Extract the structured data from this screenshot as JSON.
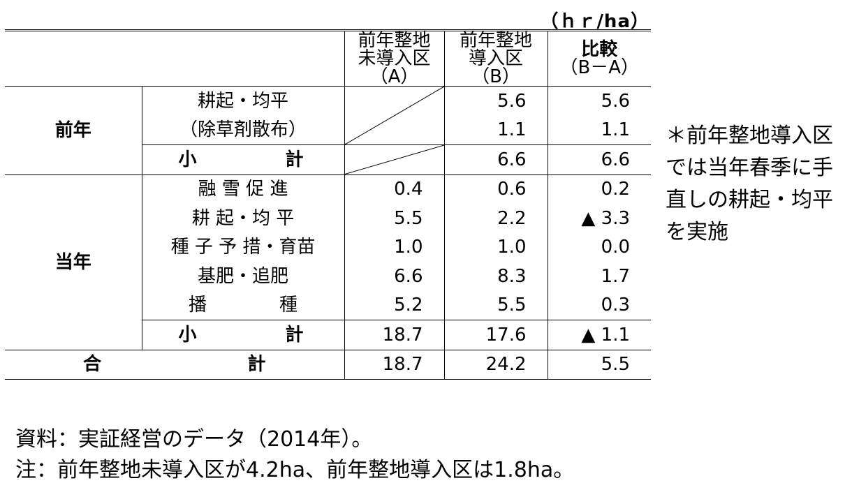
{
  "unit": "（ｈｒ/ha）",
  "header": {
    "col_a": [
      "前年整地",
      "未導入区",
      "（A）"
    ],
    "col_b": [
      "前年整地",
      "導入区",
      "（B）"
    ],
    "col_c": [
      "比較",
      "（B－A）"
    ]
  },
  "groups": {
    "prev": "前年",
    "curr": "当年"
  },
  "rows": {
    "prev_item1_line1": "耕起・均平",
    "prev_item1_line2": "（除草剤散布）",
    "prev_item1_b1": "5.6",
    "prev_item1_c1": "5.6",
    "prev_item1_b2": "1.1",
    "prev_item1_c2": "1.1",
    "prev_sub_l": "小",
    "prev_sub_r": "計",
    "prev_sub_b": "6.6",
    "prev_sub_c": "6.6",
    "curr": [
      {
        "item": "融 雪 促 進",
        "a": "0.4",
        "b": "0.6",
        "c": "0.2"
      },
      {
        "item": "耕 起・均 平",
        "a": "5.5",
        "b": "2.2",
        "c": "▲ 3.3"
      },
      {
        "item": "種 子 予 措・育苗",
        "a": "1.0",
        "b": "1.0",
        "c": "0.0"
      },
      {
        "item": "基肥・追肥",
        "a": "6.6",
        "b": "8.3",
        "c": "1.7"
      },
      {
        "item": "播　　　　種",
        "a": "5.2",
        "b": "5.5",
        "c": "0.3"
      }
    ],
    "curr_sub_l": "小",
    "curr_sub_r": "計",
    "curr_sub_a": "18.7",
    "curr_sub_b": "17.6",
    "curr_sub_c": "▲ 1.1",
    "total_l": "合",
    "total_r": "計",
    "total_a": "18.7",
    "total_b": "24.2",
    "total_c": "5.5"
  },
  "side_note": "＊前年整地導入区では当年春季に手直しの耕起・均平を実施",
  "source": "資料：実証経営のデータ（2014年）。",
  "footnote": "注：前年整地未導入区が4.2ha、前年整地導入区は1.8ha。"
}
